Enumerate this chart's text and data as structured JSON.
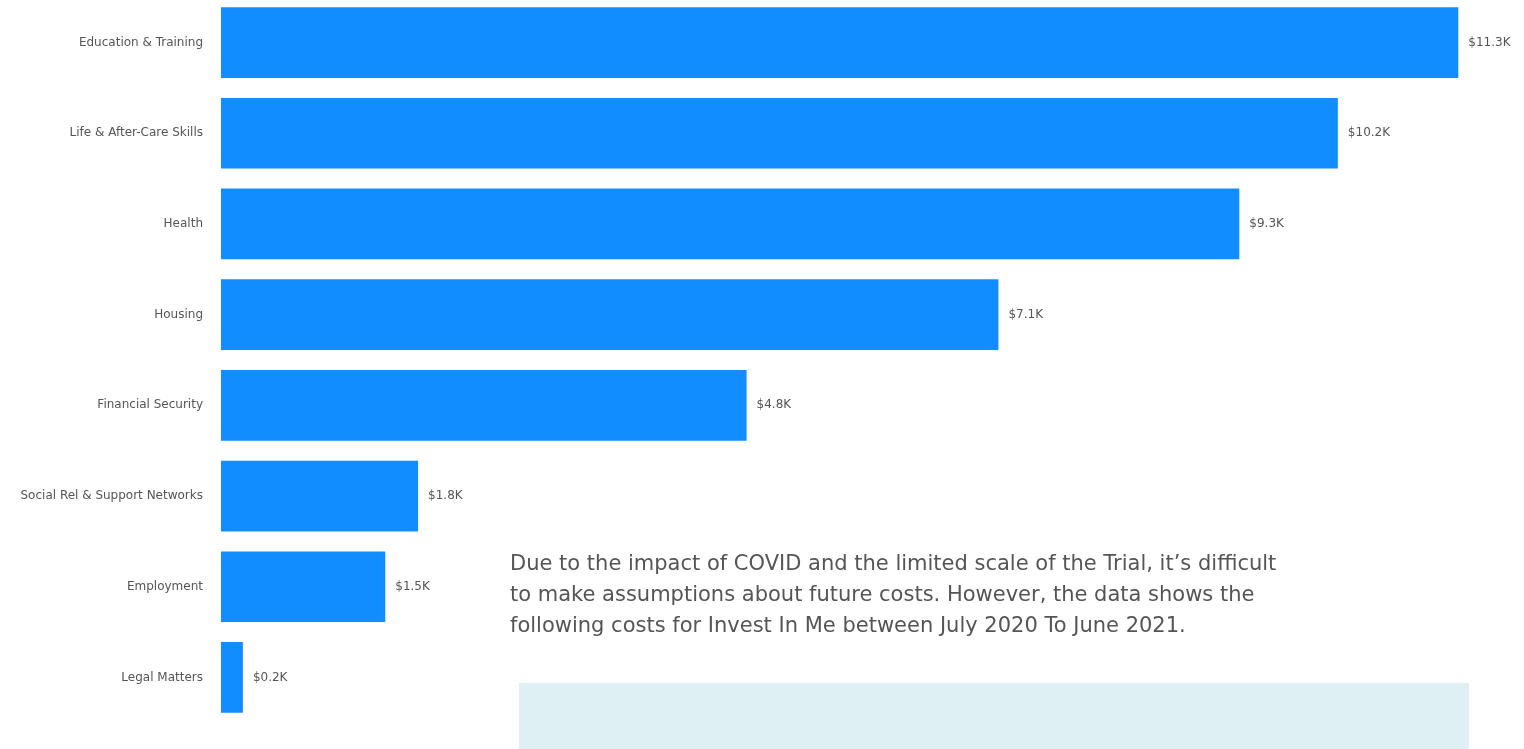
{
  "chart_data": {
    "type": "bar",
    "orientation": "horizontal",
    "categories": [
      "Education & Training",
      "Life & After-Care Skills",
      "Health",
      "Housing",
      "Financial Security",
      "Social Rel & Support Networks",
      "Employment",
      "Legal Matters"
    ],
    "values": [
      11.3,
      10.2,
      9.3,
      7.1,
      4.8,
      1.8,
      1.5,
      0.2
    ],
    "value_labels": [
      "$11.3K",
      "$10.2K",
      "$9.3K",
      "$7.1K",
      "$4.8K",
      "$1.8K",
      "$1.5K",
      "$0.2K"
    ],
    "color": "#118dff",
    "xlim": [
      0,
      11.9
    ],
    "annotations": [
      "Due to the impact of COVID and the limited scale of the Trial, it’s difficult to make assumptions about future costs. However, the data shows the following costs for Invest In Me between July 2020 To June 2021."
    ]
  }
}
